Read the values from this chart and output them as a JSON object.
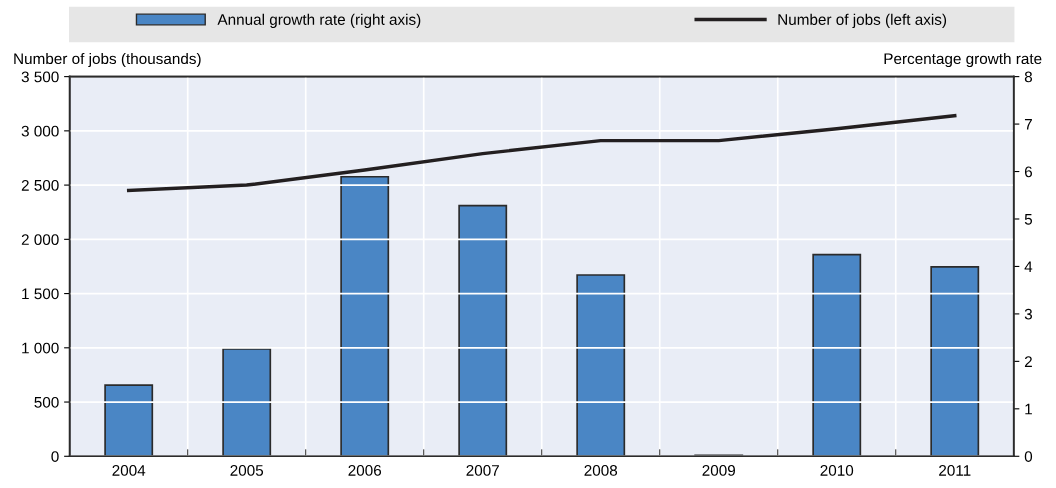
{
  "chart_data": {
    "type": "bar",
    "categories": [
      "2004",
      "2005",
      "2006",
      "2007",
      "2008",
      "2009",
      "2010",
      "2011"
    ],
    "series": [
      {
        "name": "Annual growth rate (right axis)",
        "axis": "y2",
        "color": "#4a86c5",
        "values": [
          1.5,
          2.26,
          5.89,
          5.28,
          3.82,
          0.02,
          4.25,
          3.99
        ]
      },
      {
        "name": "Number of jobs (left axis)",
        "type": "line",
        "color": "#231f20",
        "values": [
          2450,
          2500,
          2640,
          2790,
          2910,
          2910,
          3020,
          3140
        ]
      }
    ],
    "ylabel": "Number of jobs (thousands)",
    "y2label": "Percentage growth rate",
    "ylim": [
      0,
      3500
    ],
    "yticks": [
      {
        "value": 0,
        "label": "0"
      },
      {
        "value": 500,
        "label": "500"
      },
      {
        "value": 1000,
        "label": "1 000"
      },
      {
        "value": 1500,
        "label": "1 500"
      },
      {
        "value": 2000,
        "label": "2 000"
      },
      {
        "value": 2500,
        "label": "2 500"
      },
      {
        "value": 3000,
        "label": "3 000"
      },
      {
        "value": 3500,
        "label": "3 500"
      }
    ],
    "y2lim": [
      0,
      8
    ],
    "y2ticks": [
      0,
      1,
      2,
      3,
      4,
      5,
      6,
      7,
      8
    ],
    "grid": true,
    "legend": "top",
    "marker": "none",
    "line_style": "solid"
  }
}
